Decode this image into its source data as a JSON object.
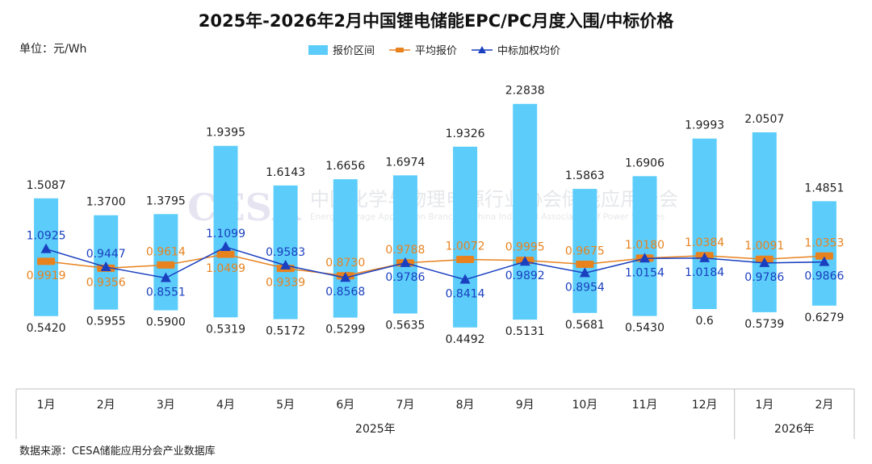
{
  "title": "2025年-2026年2月中国锂电储能EPC/PC月度入围/中标价格",
  "unit": "单位：元/Wh",
  "source": "数据来源：CESA储能应用分会产业数据库",
  "watermark": {
    "logo": "CESA",
    "cn": "中国化学与物理电源行业协会储能应用分会",
    "en": "Energy Storage Application Branch of China Industrial Association of Power Sources"
  },
  "colors": {
    "bar": "#5ccdfa",
    "avg": "#e8821e",
    "winning": "#1a3fbf"
  },
  "chart_data": {
    "type": "bar",
    "categories": [
      "1月",
      "2月",
      "3月",
      "4月",
      "5月",
      "6月",
      "7月",
      "8月",
      "9月",
      "10月",
      "11月",
      "12月",
      "1月",
      "2月"
    ],
    "year_groups": [
      {
        "label": "2025年",
        "count": 12
      },
      {
        "label": "2026年",
        "count": 2
      }
    ],
    "series": [
      {
        "name": "报价区间",
        "type": "range-bar",
        "high": [
          1.5087,
          1.37,
          1.3795,
          1.9395,
          1.6143,
          1.6656,
          1.6974,
          1.9326,
          2.2838,
          1.5863,
          1.6906,
          1.9993,
          2.0507,
          1.4851
        ],
        "low": [
          0.542,
          0.5955,
          0.59,
          0.5319,
          0.5172,
          0.5299,
          0.5635,
          0.4492,
          0.5131,
          0.5681,
          0.543,
          0.6,
          0.5739,
          0.6279
        ],
        "high_labels": [
          "1.5087",
          "1.3700",
          "1.3795",
          "1.9395",
          "1.6143",
          "1.6656",
          "1.6974",
          "1.9326",
          "2.2838",
          "1.5863",
          "1.6906",
          "1.9993",
          "2.0507",
          "1.4851"
        ],
        "low_labels": [
          "0.5420",
          "0.5955",
          "0.5900",
          "0.5319",
          "0.5172",
          "0.5299",
          "0.5635",
          "0.4492",
          "0.5131",
          "0.5681",
          "0.5430",
          "0.6",
          "0.5739",
          "0.6279"
        ]
      },
      {
        "name": "平均报价",
        "type": "line",
        "values": [
          0.9919,
          0.9356,
          0.9614,
          1.0499,
          0.9339,
          0.873,
          0.9788,
          1.0072,
          0.9995,
          0.9675,
          1.018,
          1.0384,
          1.0091,
          1.0353
        ],
        "labels": [
          "0.9919",
          "0.9356",
          "0.9614",
          "1.0499",
          "0.9339",
          "0.8730",
          "0.9788",
          "1.0072",
          "0.9995",
          "0.9675",
          "1.0180",
          "1.0384",
          "1.0091",
          "1.0353"
        ]
      },
      {
        "name": "中标加权均价",
        "type": "line",
        "values": [
          1.0925,
          0.9447,
          0.8551,
          1.1099,
          0.9583,
          0.8568,
          0.9786,
          0.8414,
          0.9892,
          0.8954,
          1.0154,
          1.0184,
          0.9786,
          0.9866
        ],
        "labels": [
          "1.0925",
          "0.9447",
          "0.8551",
          "1.1099",
          "0.9583",
          "0.8568",
          "0.9786",
          "0.8414",
          "0.9892",
          "0.8954",
          "1.0154",
          "1.0184",
          "0.9786",
          "0.9866"
        ]
      }
    ],
    "ylim": [
      0.2,
      2.5
    ],
    "grid": false,
    "legend": "top"
  }
}
